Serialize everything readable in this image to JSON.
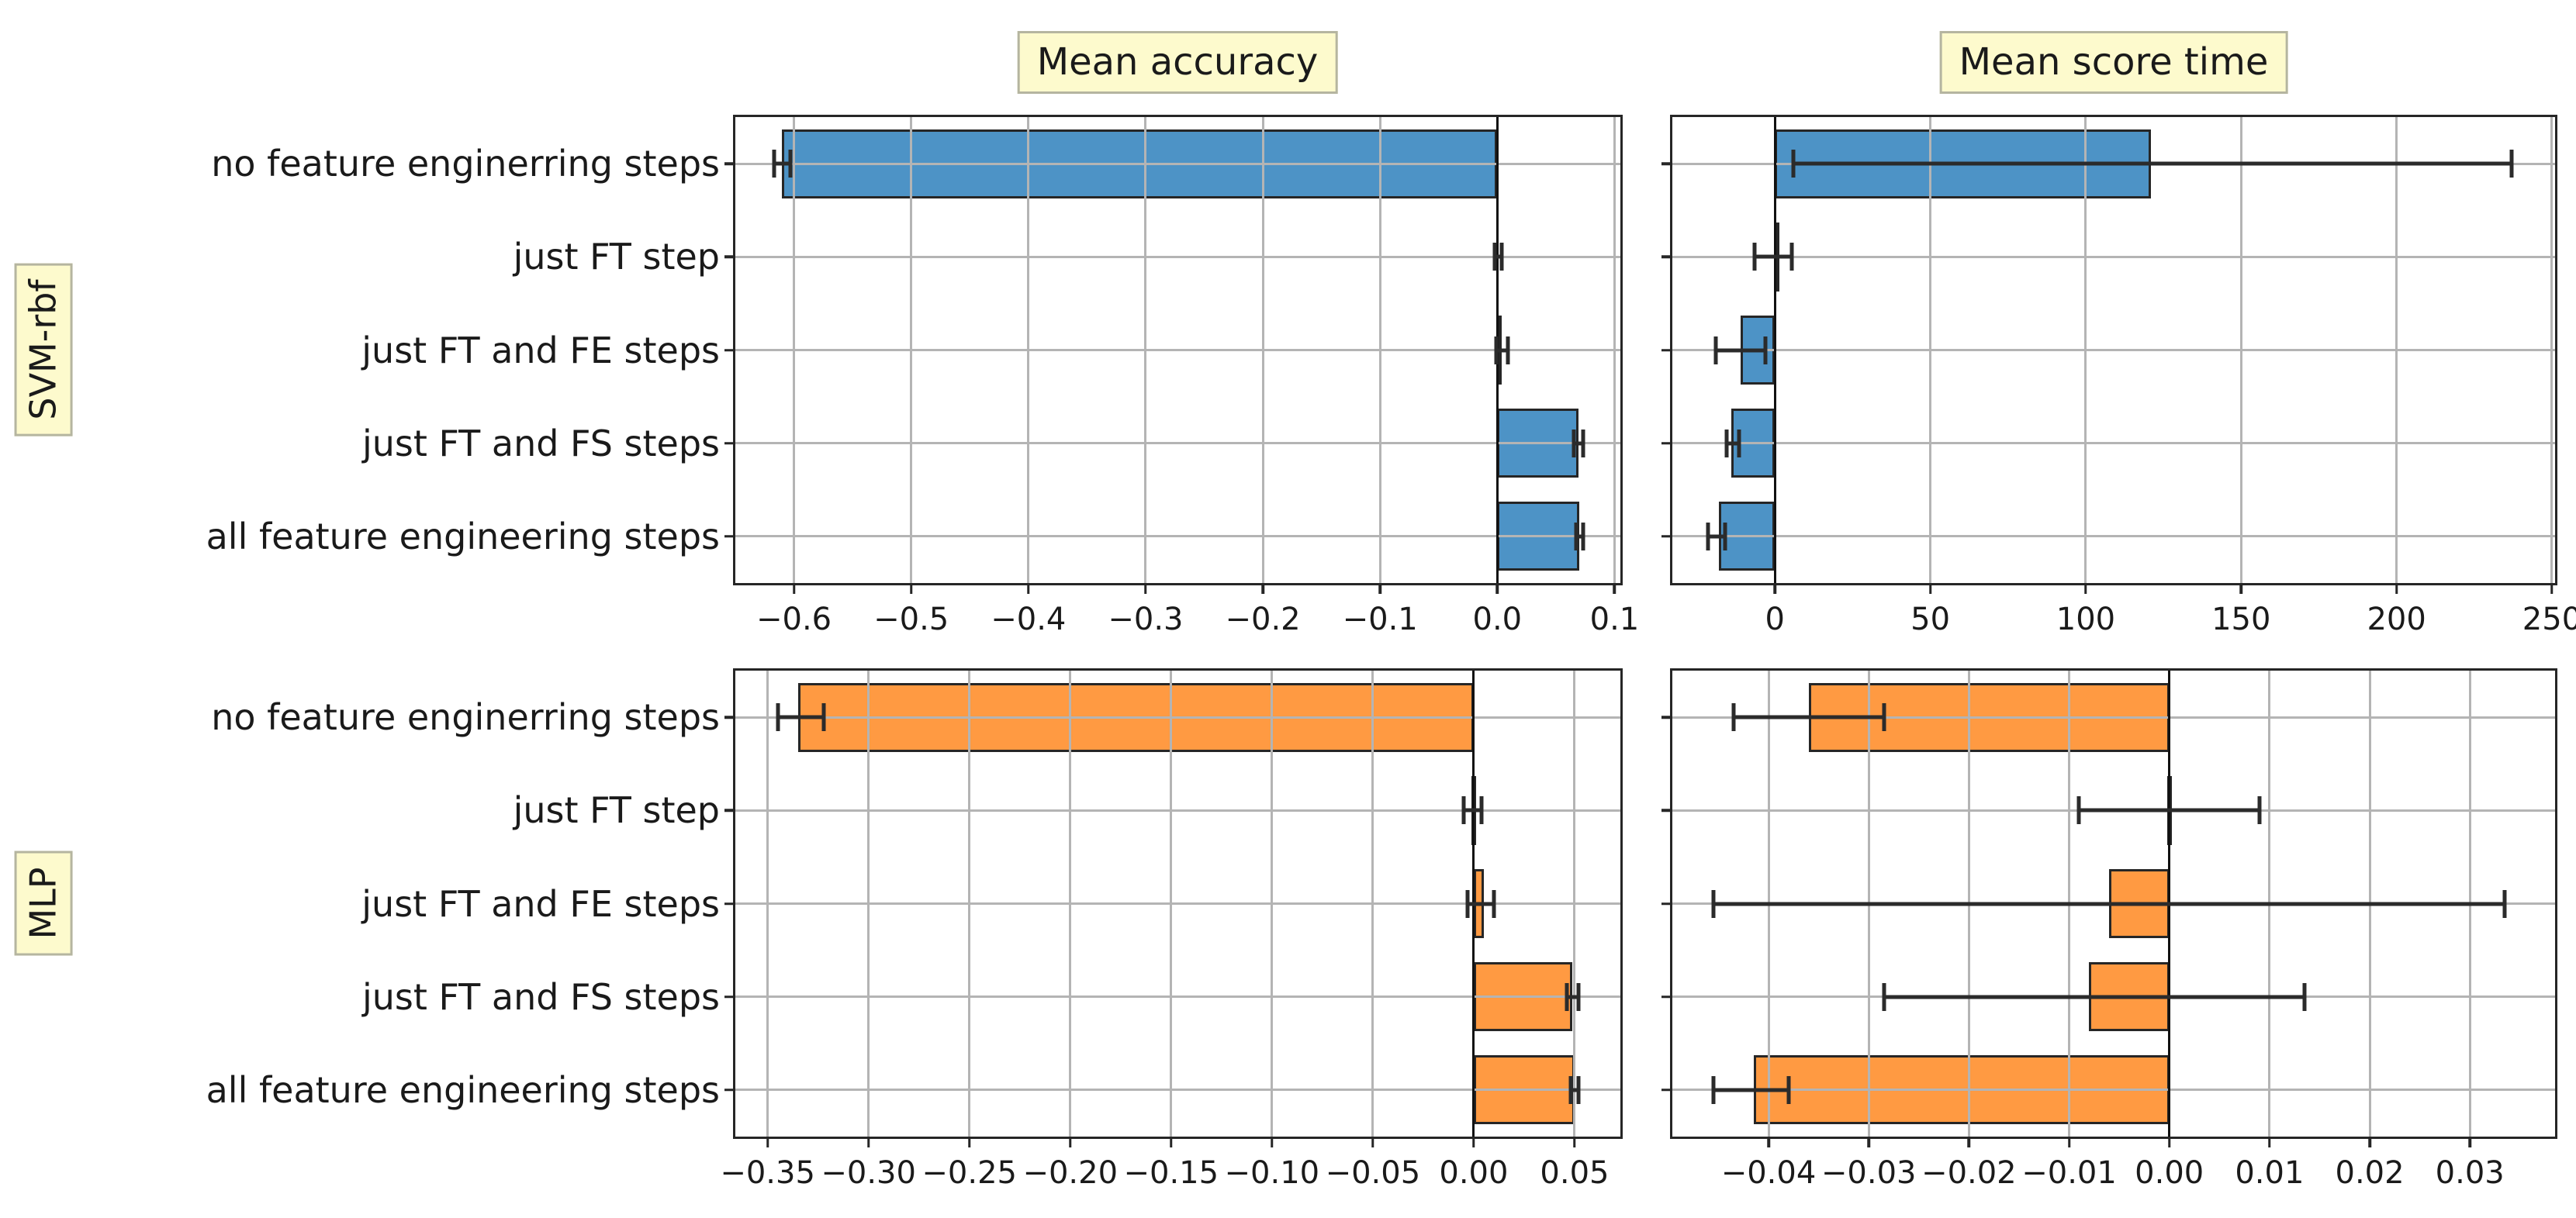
{
  "figure": {
    "background": "#ffffff",
    "grid_color": "#b4b4b4",
    "bar_edge_color": "#262626",
    "errorbar_color": "#2b2b2b",
    "label_box": {
      "bg": "#fdfacd",
      "border": "#b5b5a0"
    },
    "col_titles": [
      "Mean accuracy",
      "Mean score time"
    ],
    "row_groups": [
      "SVM-rbf",
      "MLP"
    ]
  },
  "categories": [
    "no feature enginerring steps",
    "just FT step",
    "just FT and FE steps",
    "just FT and FS steps",
    "all feature engineering steps"
  ],
  "chart_data": [
    {
      "type": "bar",
      "orientation": "horizontal",
      "group": "SVM-rbf",
      "measure": "Mean accuracy",
      "bar_color": "#4d93c6",
      "grid": true,
      "show_category_labels": true,
      "categories": [
        "no feature enginerring steps",
        "just FT step",
        "just FT and FE steps",
        "just FT and FS steps",
        "all feature engineering steps"
      ],
      "values": [
        -0.61,
        0.001,
        0.004,
        0.069,
        0.07
      ],
      "error_low": [
        -0.617,
        -0.002,
        -0.001,
        0.065,
        0.067
      ],
      "error_high": [
        -0.603,
        0.004,
        0.009,
        0.073,
        0.073
      ],
      "xlim": [
        -0.65,
        0.105
      ],
      "xticks": [
        -0.6,
        -0.5,
        -0.4,
        -0.3,
        -0.2,
        -0.1,
        0.0,
        0.1
      ],
      "xtick_labels": [
        "−0.6",
        "−0.5",
        "−0.4",
        "−0.3",
        "−0.2",
        "−0.1",
        "0.0",
        "0.1"
      ]
    },
    {
      "type": "bar",
      "orientation": "horizontal",
      "group": "SVM-rbf",
      "measure": "Mean score time",
      "bar_color": "#4d93c6",
      "grid": true,
      "show_category_labels": false,
      "categories": [
        "no feature enginerring steps",
        "just FT step",
        "just FT and FE steps",
        "just FT and FS steps",
        "all feature engineering steps"
      ],
      "values": [
        121,
        0.5,
        -11,
        -14,
        -18
      ],
      "error_low": [
        6,
        -6.5,
        -19,
        -15.5,
        -21.5
      ],
      "error_high": [
        237,
        5.5,
        -3,
        -11.5,
        -16
      ],
      "xlim": [
        -33,
        251
      ],
      "xticks": [
        0,
        50,
        100,
        150,
        200,
        250
      ],
      "xtick_labels": [
        "0",
        "50",
        "100",
        "150",
        "200",
        "250"
      ]
    },
    {
      "type": "bar",
      "orientation": "horizontal",
      "group": "MLP",
      "measure": "Mean accuracy",
      "bar_color": "#ff9a42",
      "grid": true,
      "show_category_labels": true,
      "categories": [
        "no feature enginerring steps",
        "just FT step",
        "just FT and FE steps",
        "just FT and FS steps",
        "all feature engineering steps"
      ],
      "values": [
        -0.335,
        -0.001,
        0.005,
        0.049,
        0.05
      ],
      "error_low": [
        -0.345,
        -0.005,
        -0.003,
        0.046,
        0.048
      ],
      "error_high": [
        -0.322,
        0.004,
        0.01,
        0.052,
        0.052
      ],
      "xlim": [
        -0.366,
        0.0727
      ],
      "xticks": [
        -0.35,
        -0.3,
        -0.25,
        -0.2,
        -0.15,
        -0.1,
        -0.05,
        0.0,
        0.05
      ],
      "xtick_labels": [
        "−0.35",
        "−0.30",
        "−0.25",
        "−0.20",
        "−0.15",
        "−0.10",
        "−0.05",
        "0.00",
        "0.05"
      ]
    },
    {
      "type": "bar",
      "orientation": "horizontal",
      "group": "MLP",
      "measure": "Mean score time",
      "bar_color": "#ff9a42",
      "grid": true,
      "show_category_labels": false,
      "categories": [
        "no feature enginerring steps",
        "just FT step",
        "just FT and FE steps",
        "just FT and FS steps",
        "all feature engineering steps"
      ],
      "values": [
        -0.036,
        -0.0002,
        -0.006,
        -0.008,
        -0.0415
      ],
      "error_low": [
        -0.0435,
        -0.009,
        -0.0455,
        -0.0285,
        -0.0455
      ],
      "error_high": [
        -0.0285,
        0.009,
        0.0335,
        0.0135,
        -0.038
      ],
      "xlim": [
        -0.0496,
        0.0385
      ],
      "xticks": [
        -0.04,
        -0.03,
        -0.02,
        -0.01,
        0.0,
        0.01,
        0.02,
        0.03
      ],
      "xtick_labels": [
        "−0.04",
        "−0.03",
        "−0.02",
        "−0.01",
        "0.00",
        "0.01",
        "0.02",
        "0.03"
      ]
    }
  ]
}
